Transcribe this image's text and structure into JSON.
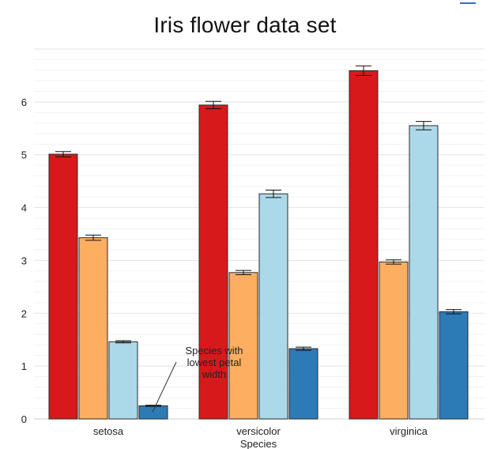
{
  "chart_data": {
    "type": "bar",
    "title": "Iris flower data set",
    "xlabel": "Species",
    "ylabel": "",
    "categories": [
      "setosa",
      "versicolor",
      "virginica"
    ],
    "ylim": [
      0,
      7
    ],
    "yticks": [
      0,
      1,
      2,
      3,
      4,
      5,
      6
    ],
    "grid": true,
    "legend": "none",
    "series": [
      {
        "color": "#d7191c",
        "values": [
          5.01,
          5.94,
          6.59
        ],
        "error": [
          0.05,
          0.07,
          0.09
        ]
      },
      {
        "color": "#fdae61",
        "values": [
          3.43,
          2.77,
          2.97
        ],
        "error": [
          0.05,
          0.04,
          0.04
        ]
      },
      {
        "color": "#abd9e9",
        "values": [
          1.46,
          4.26,
          5.55
        ],
        "error": [
          0.02,
          0.07,
          0.08
        ]
      },
      {
        "color": "#2c7bb6",
        "values": [
          0.25,
          1.33,
          2.03
        ],
        "error": [
          0.01,
          0.03,
          0.04
        ]
      }
    ],
    "annotation": {
      "lines": [
        "Species with",
        "lowest petal",
        "width"
      ],
      "category": "setosa",
      "series_index": 3
    }
  }
}
